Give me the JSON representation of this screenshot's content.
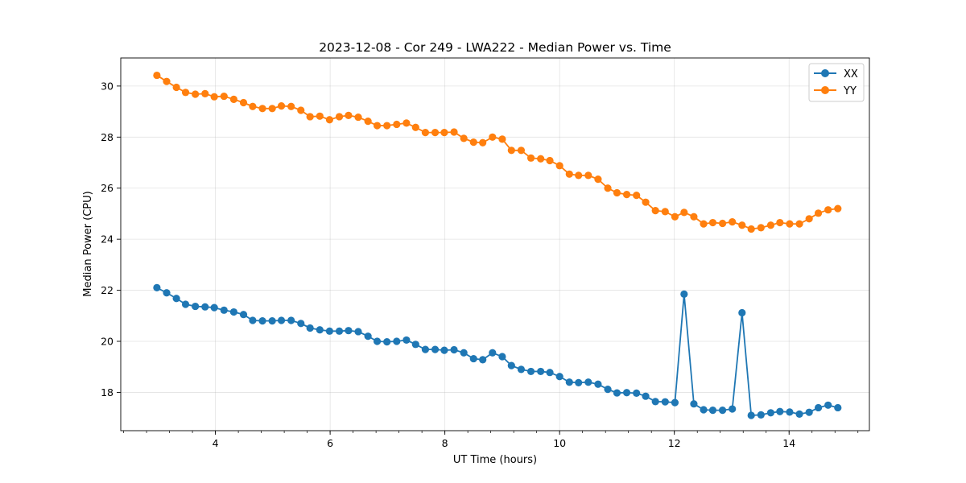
{
  "chart_data": {
    "type": "line",
    "title": "2023-12-08 - Cor 249 - LWA222 - Median Power vs. Time",
    "xlabel": "UT Time (hours)",
    "ylabel": "Median Power (CPU)",
    "xlim": [
      2.35,
      15.4
    ],
    "ylim": [
      16.5,
      31.1
    ],
    "xticks": [
      4,
      6,
      8,
      10,
      12,
      14
    ],
    "xticklabels": [
      "4",
      "6",
      "8",
      "10",
      "12",
      "14"
    ],
    "xminor_step": 0.4,
    "yticks": [
      18,
      20,
      22,
      24,
      26,
      28,
      30
    ],
    "yticklabels": [
      "18",
      "20",
      "22",
      "24",
      "26",
      "28",
      "30"
    ],
    "grid": true,
    "legend_position": "top-right",
    "series": [
      {
        "name": "XX",
        "color": "#1f77b4",
        "x": [
          2.98,
          3.15,
          3.32,
          3.48,
          3.65,
          3.82,
          3.98,
          4.15,
          4.32,
          4.49,
          4.65,
          4.82,
          4.99,
          5.15,
          5.32,
          5.49,
          5.65,
          5.82,
          5.99,
          6.16,
          6.32,
          6.49,
          6.66,
          6.82,
          6.99,
          7.16,
          7.33,
          7.49,
          7.66,
          7.83,
          7.99,
          8.16,
          8.33,
          8.5,
          8.66,
          8.83,
          9.0,
          9.16,
          9.33,
          9.5,
          9.67,
          9.83,
          10.0,
          10.17,
          10.33,
          10.5,
          10.67,
          10.84,
          11.0,
          11.17,
          11.34,
          11.5,
          11.67,
          11.84,
          12.01,
          12.17,
          12.34,
          12.51,
          12.67,
          12.84,
          13.01,
          13.18,
          13.34,
          13.51,
          13.68,
          13.84,
          14.01,
          14.18,
          14.35,
          14.51,
          14.68,
          14.85
        ],
        "values": [
          22.1,
          21.9,
          21.68,
          21.45,
          21.37,
          21.35,
          21.32,
          21.22,
          21.15,
          21.05,
          20.82,
          20.8,
          20.8,
          20.82,
          20.82,
          20.7,
          20.52,
          20.45,
          20.4,
          20.4,
          20.42,
          20.38,
          20.2,
          20.0,
          19.98,
          20.0,
          20.05,
          19.88,
          19.68,
          19.68,
          19.65,
          19.67,
          19.55,
          19.32,
          19.28,
          19.55,
          19.4,
          19.05,
          18.9,
          18.82,
          18.82,
          18.78,
          18.62,
          18.4,
          18.38,
          18.4,
          18.32,
          18.12,
          17.98,
          17.99,
          17.97,
          17.85,
          17.64,
          17.63,
          17.6,
          21.85,
          17.55,
          17.32,
          17.3,
          17.3,
          17.35,
          21.12,
          17.1,
          17.12,
          17.2,
          17.25,
          17.23,
          17.15,
          17.22,
          17.4,
          17.5,
          17.4
        ]
      },
      {
        "name": "YY",
        "color": "#ff7f0e",
        "x": [
          2.98,
          3.15,
          3.32,
          3.48,
          3.65,
          3.82,
          3.98,
          4.15,
          4.32,
          4.49,
          4.65,
          4.82,
          4.99,
          5.15,
          5.32,
          5.49,
          5.65,
          5.82,
          5.99,
          6.16,
          6.32,
          6.49,
          6.66,
          6.82,
          6.99,
          7.16,
          7.33,
          7.49,
          7.66,
          7.83,
          7.99,
          8.16,
          8.33,
          8.5,
          8.66,
          8.83,
          9.0,
          9.16,
          9.33,
          9.5,
          9.67,
          9.83,
          10.0,
          10.17,
          10.33,
          10.5,
          10.67,
          10.84,
          11.0,
          11.17,
          11.34,
          11.5,
          11.67,
          11.84,
          12.01,
          12.17,
          12.34,
          12.51,
          12.67,
          12.84,
          13.01,
          13.18,
          13.34,
          13.51,
          13.68,
          13.84,
          14.01,
          14.18,
          14.35,
          14.51,
          14.68,
          14.85
        ],
        "values": [
          30.42,
          30.18,
          29.95,
          29.75,
          29.68,
          29.7,
          29.58,
          29.6,
          29.48,
          29.35,
          29.2,
          29.12,
          29.12,
          29.22,
          29.2,
          29.05,
          28.8,
          28.82,
          28.68,
          28.8,
          28.85,
          28.78,
          28.62,
          28.45,
          28.45,
          28.5,
          28.55,
          28.38,
          28.18,
          28.18,
          28.18,
          28.2,
          27.95,
          27.8,
          27.78,
          28.0,
          27.92,
          27.48,
          27.48,
          27.18,
          27.15,
          27.08,
          26.88,
          26.55,
          26.5,
          26.5,
          26.35,
          26.0,
          25.82,
          25.75,
          25.72,
          25.45,
          25.12,
          25.08,
          24.88,
          25.05,
          24.88,
          24.6,
          24.65,
          24.62,
          24.68,
          24.55,
          24.4,
          24.45,
          24.55,
          24.65,
          24.6,
          24.6,
          24.8,
          25.02,
          25.15,
          25.2
        ]
      }
    ]
  }
}
